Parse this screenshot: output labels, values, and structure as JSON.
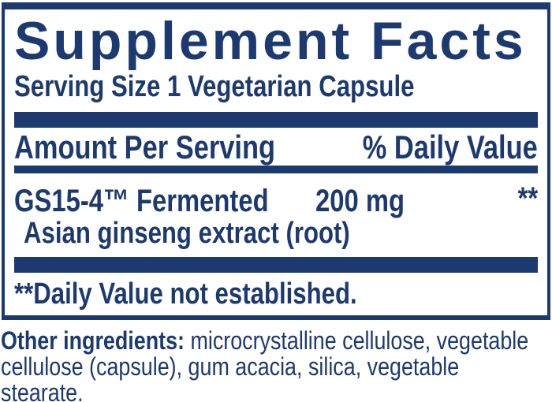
{
  "colors": {
    "navy": "#1d3a70",
    "background": "#ffffff"
  },
  "panel": {
    "title": "Supplement Facts",
    "serving_size": "Serving Size 1 Vegetarian Capsule",
    "header": {
      "amount_label": "Amount Per Serving",
      "daily_value_label": "% Daily Value"
    },
    "ingredients": [
      {
        "name": "GS15-4™ Fermented",
        "name_line2": "Asian ginseng extract (root)",
        "amount": "200 mg",
        "daily_value": "**"
      }
    ],
    "footnote": "**Daily Value not established."
  },
  "other_ingredients": {
    "label": "Other ingredients:",
    "line1_rest": " microcrystalline cellulose, vegetable",
    "line2": "cellulose (capsule), gum acacia, silica, vegetable",
    "line3": "stearate.",
    "full_text": "Other ingredients: microcrystalline cellulose, vegetable cellulose (capsule), gum acacia, silica, vegetable stearate."
  }
}
